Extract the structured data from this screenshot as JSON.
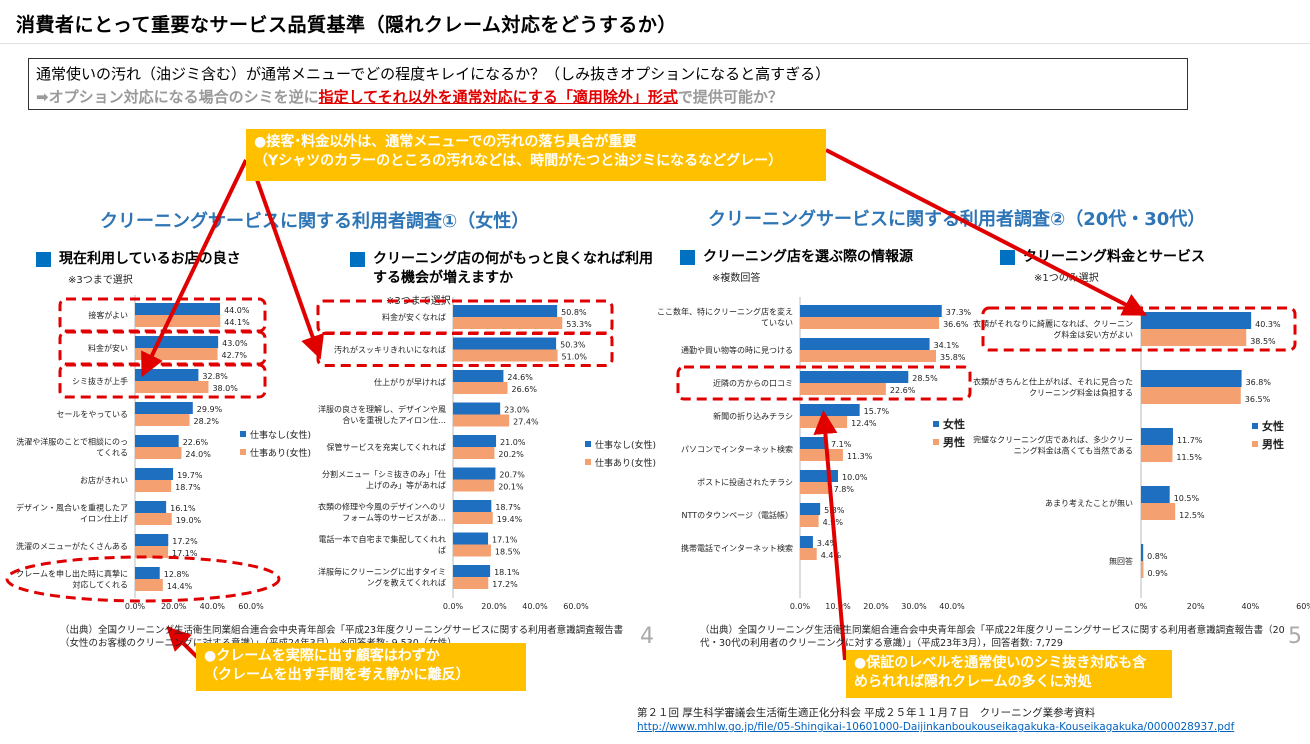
{
  "header": {
    "title": "消費者にとって重要なサービス品質基準（隠れクレーム対応をどうするか）",
    "question": "通常使いの汚れ（油ジミ含む）が通常メニューでどの程度キレイになるか？（しみ抜きオプションになると高すぎる）",
    "proposal_pre": "➡オプション対応になる場合のシミを逆に",
    "proposal_red": "指定してそれ以外を通常対応にする「適用除外」形式",
    "proposal_post": "で提供可能か？"
  },
  "callouts": {
    "top_line1": "●接客･料金以外は、通常メニューでの汚れの落ち具合が重要",
    "top_line2": "（Yシャツのカラーのところの汚れなどは、時間がたつと油ジミになるなどグレー）",
    "bottom_left_line1": "●クレームを実際に出す顧客はわずか",
    "bottom_left_line2": "（クレームを出す手間を考え静かに離反）",
    "bottom_right_line1": "●保証のレベルを通常使いのシミ抜き対応も含",
    "bottom_right_line2": "められれば隠れクレームの多くに対処"
  },
  "panels": {
    "left_title": "クリーニングサービスに関する利用者調査①（女性）",
    "right_title": "クリーニングサービスに関する利用者調査②（20代・30代）",
    "left_source": "（出典）全国クリーニング生活衛生同業組合連合会中央青年部会「平成23年度クリーニングサービスに関する利用者意識調査報告書（女性のお客様のクリーニングに対する意識）」（平成24年3月），※回答者数: 9,530（女性）",
    "right_source": "（出典）全国クリーニング生活衛生同業組合連合会中央青年部会「平成22年度クリーニングサービスに関する利用者意識調査報告書（20代・30代の利用者のクリーニングに対する意識）」（平成23年3月），回答者数: 7,729",
    "left_page": "4",
    "right_page": "5"
  },
  "reference": {
    "line1": "第２１回 厚生科学審議会生活衛生適正化分科会 平成２５年１１月７日　クリーニング業参考資料",
    "url": "http://www.mhlw.go.jp/file/05-Shingikai-10601000-Daijinkanboukouseikagakuka-Kouseikagakuka/0000028937.pdf"
  },
  "colors": {
    "series_a": "#1f6fc0",
    "series_b": "#f4a070",
    "highlight": "#e00000",
    "callout": "#ffc000",
    "title_blue": "#2e75b6"
  },
  "chart_data": [
    {
      "type": "bar",
      "orientation": "horizontal",
      "title": "現在利用しているお店の良さ",
      "note": "※3つまで選択",
      "categories": [
        "接客がよい",
        "料金が安い",
        "シミ抜きが上手",
        "セールをやっている",
        "洗濯や洋服のことで相談にのってくれる",
        "お店がきれい",
        "デザイン・風合いを重視したアイロン仕上げ",
        "洗濯のメニューがたくさんある",
        "クレームを申し出た時に真摯に対応してくれる"
      ],
      "series": [
        {
          "name": "仕事なし(女性)",
          "values": [
            44.0,
            43.0,
            32.8,
            29.9,
            22.6,
            19.7,
            16.1,
            17.2,
            12.8
          ]
        },
        {
          "name": "仕事あり(女性)",
          "values": [
            44.1,
            42.7,
            38.0,
            28.2,
            24.0,
            18.7,
            19.0,
            17.1,
            14.4
          ]
        }
      ],
      "xlim": [
        0,
        60
      ],
      "xticks": [
        "0.0%",
        "20.0%",
        "40.0%",
        "60.0%"
      ],
      "highlighted": [
        0,
        1,
        2,
        8
      ]
    },
    {
      "type": "bar",
      "orientation": "horizontal",
      "title": "クリーニング店の何がもっと良くなれば利用する機会が増えますか",
      "note": "※3つまで選択",
      "categories": [
        "料金が安くなれば",
        "汚れがスッキリきれいになれば",
        "仕上がりが早ければ",
        "洋服の良さを理解し、デザインや風合いを重視したアイロン仕…",
        "保管サービスを充実してくれれば",
        "分割メニュー「シミ抜きのみ」「仕上げのみ」等があれば",
        "衣類の修理や今風のデザインへのリフォーム等のサービスがあ…",
        "電話一本で自宅まで集配してくれれば",
        "洋服毎にクリーニングに出すタイミングを教えてくれれば"
      ],
      "series": [
        {
          "name": "仕事なし(女性)",
          "values": [
            50.8,
            50.3,
            24.6,
            23.0,
            21.0,
            20.7,
            18.7,
            17.1,
            18.1
          ]
        },
        {
          "name": "仕事あり(女性)",
          "values": [
            53.3,
            51.0,
            26.6,
            27.4,
            20.2,
            20.1,
            19.4,
            18.5,
            17.2
          ]
        }
      ],
      "xlim": [
        0,
        60
      ],
      "xticks": [
        "0.0%",
        "20.0%",
        "40.0%",
        "60.0%"
      ],
      "highlighted": [
        0,
        1
      ]
    },
    {
      "type": "bar",
      "orientation": "horizontal",
      "title": "クリーニング店を選ぶ際の情報源",
      "note": "※複数回答",
      "categories": [
        "ここ数年、特にクリーニング店を変えていない",
        "通勤や買い物等の時に見つける",
        "近隣の方からの口コミ",
        "新聞の折り込みチラシ",
        "パソコンでインターネット検索",
        "ポストに投函されたチラシ",
        "NTTのタウンページ（電話帳）",
        "携帯電話でインターネット検索"
      ],
      "series": [
        {
          "name": "女性",
          "values": [
            37.3,
            34.1,
            28.5,
            15.7,
            7.1,
            10.0,
            5.3,
            3.4
          ]
        },
        {
          "name": "男性",
          "values": [
            36.6,
            35.8,
            22.6,
            12.4,
            11.3,
            7.8,
            4.9,
            4.4
          ]
        }
      ],
      "xlim": [
        0,
        40
      ],
      "xticks": [
        "0.0%",
        "10.0%",
        "20.0%",
        "30.0%",
        "40.0%"
      ],
      "highlighted": [
        2
      ]
    },
    {
      "type": "bar",
      "orientation": "horizontal",
      "title": "クリーニング料金とサービス",
      "note": "※1つのみ選択",
      "categories": [
        "衣類がそれなりに綺麗になれば、クリーニング料金は安い方がよい",
        "衣類がきちんと仕上がれば、それに見合ったクリーニング料金は負担する",
        "完璧なクリーニング店であれば、多少クリーニング料金は高くても当然である",
        "あまり考えたことが無い",
        "無回答"
      ],
      "series": [
        {
          "name": "女性",
          "values": [
            40.3,
            36.8,
            11.7,
            10.5,
            0.8
          ]
        },
        {
          "name": "男性",
          "values": [
            38.5,
            36.5,
            11.5,
            12.5,
            0.9
          ]
        }
      ],
      "xlim": [
        0,
        60
      ],
      "xticks": [
        "0%",
        "20%",
        "40%",
        "60%"
      ],
      "highlighted": [
        0
      ]
    }
  ]
}
